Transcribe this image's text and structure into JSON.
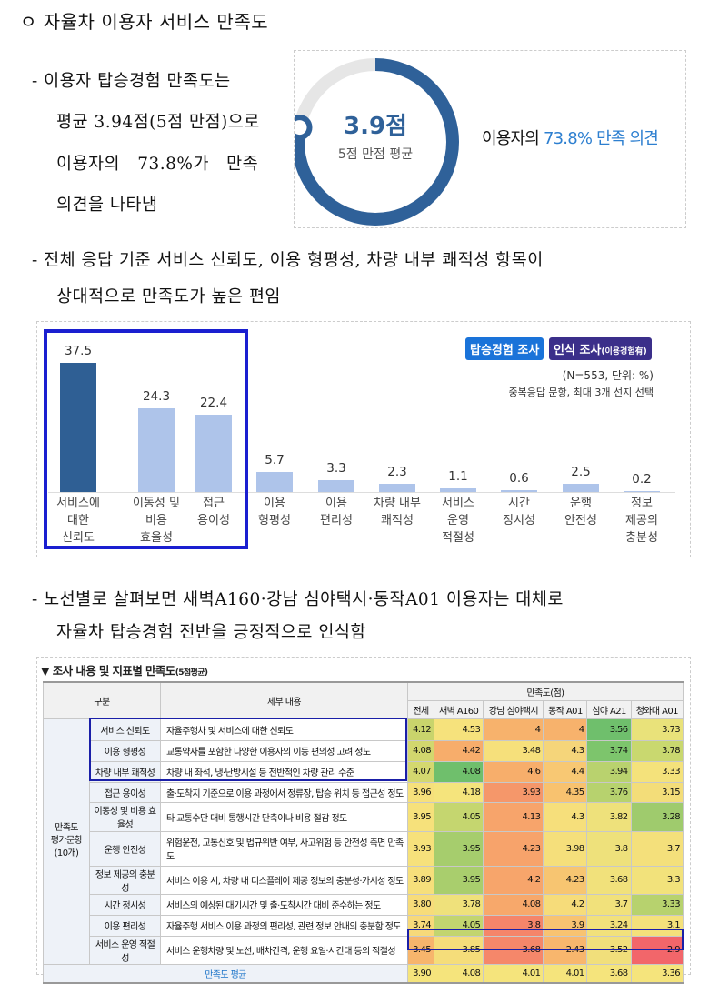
{
  "heading": "ㅇ 자율차 이용자 서비스 만족도",
  "para1": {
    "lines": [
      "- 이용자 탑승경험 만족도는",
      "평균 3.94점(5점 만점)으로",
      "이용자의   73.8%가   만족",
      "의견을 나타냄"
    ]
  },
  "donut": {
    "score": "3.9점",
    "score_value": 3.9,
    "max": 5,
    "sub": "5점 만점 평균",
    "caption_prefix": "이용자의 ",
    "caption_highlight": "73.8% 만족 의견",
    "fill_color": "#2f6199",
    "track_color": "#e6e6e6",
    "accent_color": "#2d7fd0"
  },
  "para2": {
    "lines": [
      "- 전체 응답 기준 서비스 신뢰도, 이용 형평성, 차량 내부 쾌적성 항목이",
      "상대적으로 만족도가 높은 편임"
    ]
  },
  "bar_panel": {
    "badge1": "탑승경험 조사",
    "badge2": "인식 조사",
    "badge2_small": "(이용경험有)",
    "note1": "(N=553, 단위: %)",
    "note2": "중복응답 문항, 최대 3개 선지 선택",
    "badge1_color": "#1a73d9",
    "badge2_color": "#3b2f8a"
  },
  "chart_data": {
    "type": "bar",
    "categories": [
      "서비스에\n대한\n신뢰도",
      "이동성 및\n비용\n효율성",
      "접근\n용이성",
      "이용\n형평성",
      "이용\n편리성",
      "차량 내부\n쾌적성",
      "서비스\n운영\n적절성",
      "시간\n정시성",
      "운행\n안전성",
      "정보\n제공의\n충분성"
    ],
    "values": [
      37.5,
      24.3,
      22.4,
      5.7,
      3.3,
      2.3,
      1.1,
      0.6,
      2.5,
      0.2
    ],
    "colors": [
      "#2f5f94",
      "#aec4ea",
      "#aec4ea",
      "#aec4ea",
      "#aec4ea",
      "#aec4ea",
      "#aec4ea",
      "#aec4ea",
      "#aec4ea",
      "#aec4ea"
    ],
    "highlighted_top": 3,
    "highlight_color": "#1a1fd0"
  },
  "para3": {
    "lines": [
      "- 노선별로 살펴보면 새벽A160·강남 심야택시·동작A01 이용자는 대체로",
      "자율차 탑승경험 전반을 긍정적으로 인식함"
    ]
  },
  "table": {
    "title": "▼ 조사 내용 및 지표별 만족도",
    "title_small": "(5점평균)",
    "head": {
      "gubun": "구분",
      "detail": "세부 내용",
      "group": "만족도(점)",
      "cols": [
        "전체",
        "새벽 A160",
        "강남 심야택시",
        "동작 A01",
        "심야 A21",
        "청와대 A01"
      ]
    },
    "group_label": "만족도\n평가문항\n(10개)",
    "rows": [
      {
        "name": "서비스 신뢰도",
        "detail": "자율주행차 및 서비스에 대한 신뢰도",
        "values": [
          "4.12",
          "4.53",
          "4",
          "4",
          "3.56",
          "3.73"
        ],
        "colors": [
          "#c9d46c",
          "#f6e27c",
          "#f7b26c",
          "#f7b26c",
          "#6fbf6c",
          "#e9e27a"
        ]
      },
      {
        "name": "이용 형평성",
        "detail": "교통약자를 포함한 다양한 이용자의 이동 편의성 고려 정도",
        "values": [
          "4.08",
          "4.42",
          "3.48",
          "4.3",
          "3.74",
          "3.78"
        ],
        "colors": [
          "#d2d76e",
          "#f7ad6b",
          "#f6e07b",
          "#f5d57a",
          "#7dc56c",
          "#c9d86f"
        ]
      },
      {
        "name": "차량 내부 쾌적성",
        "detail": "차량 내 좌석, 냉·난방시설 등 전반적인 차량 관리 수준",
        "values": [
          "4.07",
          "4.08",
          "4.6",
          "4.4",
          "3.94",
          "3.33"
        ],
        "colors": [
          "#d4d86f",
          "#6fbf6c",
          "#f7ae6b",
          "#f8c873",
          "#b9d26e",
          "#f4e27b"
        ]
      },
      {
        "name": "접근 용이성",
        "detail": "출·도착지 기준으로 이용 과정에서 정류장, 탑승 위치 등 접근성 정도",
        "values": [
          "3.96",
          "4.18",
          "3.93",
          "4.35",
          "3.76",
          "3.15"
        ],
        "colors": [
          "#f6e07b",
          "#f5e47c",
          "#f5976a",
          "#f8c26f",
          "#b7d26e",
          "#f3dd79"
        ]
      },
      {
        "name": "이동성 및 비용 효율성",
        "detail": "타 교통수단 대비 통행시간 단축이나 비용 절감 정도",
        "values": [
          "3.95",
          "4.05",
          "4.13",
          "4.3",
          "3.82",
          "3.28"
        ],
        "colors": [
          "#f6e17b",
          "#c5d66f",
          "#f7a46b",
          "#f6df7b",
          "#eee17b",
          "#9fcb6d"
        ]
      },
      {
        "name": "운행 안전성",
        "detail": "위험운전, 교통신호 및 법규위반 여부, 사고위험 등 안전성 측면 만족도",
        "values": [
          "3.93",
          "3.95",
          "4.23",
          "3.98",
          "3.8",
          "3.7"
        ],
        "colors": [
          "#f6e17b",
          "#a6cd6d",
          "#f7a36b",
          "#f5df7b",
          "#eee17b",
          "#f4e07b"
        ]
      },
      {
        "name": "정보 제공의 충분성",
        "detail": "서비스 이용 시, 차량 내 디스플레이 제공 정보의 충분성·가시성 정도",
        "values": [
          "3.89",
          "3.95",
          "4.2",
          "4.23",
          "3.68",
          "3.3"
        ],
        "colors": [
          "#f6df7b",
          "#a9ce6d",
          "#f7a56b",
          "#f7c571",
          "#f1e17b",
          "#f2e27b"
        ]
      },
      {
        "name": "시간 정시성",
        "detail": "서비스의 예상된 대기시간 및 출·도착시간 대비 준수하는 정도",
        "values": [
          "3.80",
          "3.78",
          "4.08",
          "4.2",
          "3.7",
          "3.33"
        ],
        "colors": [
          "#f7dc7a",
          "#efe17b",
          "#f7a86b",
          "#f6dc7a",
          "#f1e17b",
          "#b7d26e"
        ]
      },
      {
        "name": "이용 편리성",
        "detail": "자율주행 서비스 이용 과정의 편리성, 관련 정보 안내의 충분함 정도",
        "values": [
          "3.74",
          "4.05",
          "3.8",
          "3.9",
          "3.24",
          "3.1"
        ],
        "colors": [
          "#f7d97a",
          "#c2d56f",
          "#f5856a",
          "#f8c371",
          "#f2e17b",
          "#f4e17b"
        ]
      },
      {
        "name": "서비스 운영 적절성",
        "detail": "서비스 운행차량 및 노선, 배차간격, 운행 요일·시간대 등의 적절성",
        "values": [
          "3.45",
          "3.85",
          "3.68",
          "2.43",
          "3.52",
          "2.9"
        ],
        "colors": [
          "#f7b56c",
          "#f5dd7a",
          "#f5876a",
          "#f8b66d",
          "#f1df7b",
          "#f2666a"
        ]
      }
    ],
    "avg": {
      "label": "만족도 평균",
      "values": [
        "3.90",
        "4.08",
        "4.01",
        "4.01",
        "3.68",
        "3.36"
      ],
      "color": "#f5e47c"
    },
    "highlight_color": "#1a1fa8",
    "header_accent": "#1a73c8"
  }
}
